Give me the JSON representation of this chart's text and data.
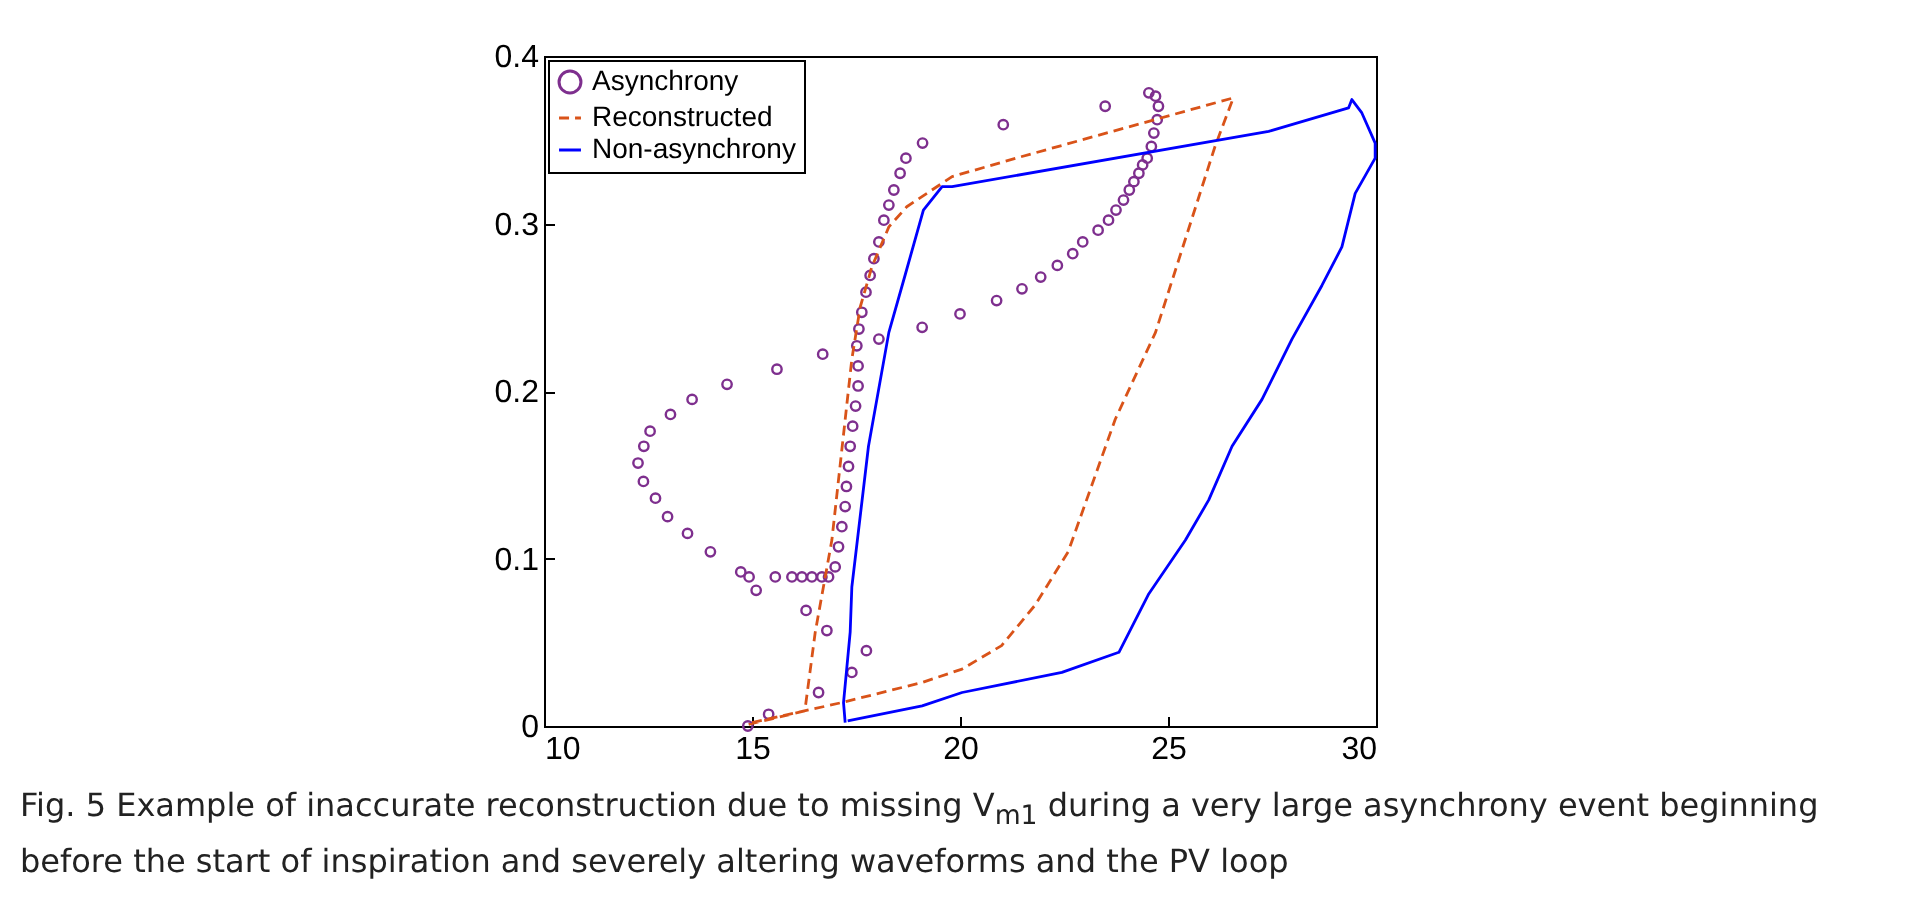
{
  "chart_data": {
    "type": "scatter",
    "xlim": [
      10,
      30
    ],
    "ylim": [
      0,
      0.4
    ],
    "xticks": [
      10,
      15,
      20,
      25,
      30
    ],
    "yticks": [
      0,
      0.1,
      0.2,
      0.3,
      0.4
    ],
    "grid": false,
    "legend": "top left",
    "annotations": [
      "Fig. 5 Example of inaccurate reconstruction due to missing V$_{m1}$ during a very large asynchrony event beginning before the start of inspiration and severely altering waveforms and the PV loop"
    ],
    "series": [
      {
        "name": "Asynchrony",
        "marker": "circle",
        "color": "#7e2f8e",
        "x": [
          14.9,
          15.4,
          16.6,
          17.4,
          17.75,
          16.8,
          16.3,
          15.1,
          14.93,
          14.73,
          14.0,
          13.45,
          12.97,
          12.68,
          12.39,
          12.26,
          12.4,
          12.55,
          13.04,
          13.56,
          14.4,
          15.6,
          16.7,
          18.05,
          15.56,
          15.96,
          16.2,
          16.44,
          16.68,
          16.84,
          17.0,
          17.08,
          17.16,
          17.24,
          17.27,
          17.32,
          17.36,
          17.42,
          17.49,
          17.55,
          17.55,
          17.52,
          17.57,
          17.64,
          17.74,
          17.84,
          17.93,
          18.05,
          18.17,
          18.29,
          18.41,
          18.56,
          18.7,
          19.1,
          19.09,
          20.0,
          21.04,
          23.49,
          20.88,
          21.49,
          21.94,
          22.34,
          22.71,
          22.95,
          23.32,
          23.57,
          23.75,
          23.93,
          24.07,
          24.18,
          24.3,
          24.39,
          24.5,
          24.6,
          24.66,
          24.74,
          24.77,
          24.7,
          24.54
        ],
        "values": [
          0.0,
          0.007,
          0.02,
          0.032,
          0.045,
          0.057,
          0.069,
          0.081,
          0.089,
          0.092,
          0.104,
          0.115,
          0.125,
          0.136,
          0.146,
          0.157,
          0.167,
          0.176,
          0.186,
          0.195,
          0.204,
          0.213,
          0.222,
          0.231,
          0.089,
          0.089,
          0.089,
          0.089,
          0.089,
          0.089,
          0.095,
          0.107,
          0.119,
          0.131,
          0.143,
          0.155,
          0.167,
          0.179,
          0.191,
          0.203,
          0.215,
          0.227,
          0.237,
          0.247,
          0.259,
          0.269,
          0.279,
          0.289,
          0.302,
          0.311,
          0.32,
          0.33,
          0.339,
          0.348,
          0.238,
          0.246,
          0.359,
          0.37,
          0.254,
          0.261,
          0.268,
          0.275,
          0.282,
          0.289,
          0.296,
          0.302,
          0.308,
          0.314,
          0.32,
          0.325,
          0.33,
          0.335,
          0.339,
          0.346,
          0.354,
          0.362,
          0.37,
          0.376,
          0.378
        ]
      },
      {
        "name": "Reconstructed",
        "type": "line",
        "marker": "none",
        "line_style": "dashed",
        "color": "#d95319",
        "x": [
          14.92,
          16.27,
          16.52,
          16.92,
          17.4,
          17.6,
          17.88,
          18.29,
          18.72,
          19.81,
          21.49,
          26.57,
          26.13,
          24.7,
          23.73,
          22.6,
          21.8,
          21.0,
          20.05,
          19.09,
          17.16,
          15.0
        ],
        "values": [
          0.001,
          0.009,
          0.056,
          0.111,
          0.219,
          0.25,
          0.274,
          0.298,
          0.31,
          0.328,
          0.34,
          0.375,
          0.346,
          0.235,
          0.183,
          0.104,
          0.072,
          0.048,
          0.034,
          0.026,
          0.014,
          0.002
        ]
      },
      {
        "name": "Non-asynchrony",
        "type": "line",
        "marker": "none",
        "line_style": "solid",
        "color": "#0000ff",
        "x": [
          17.24,
          17.2,
          17.36,
          17.4,
          17.8,
          18.29,
          18.69,
          19.12,
          19.57,
          19.81,
          27.42,
          29.34,
          29.42,
          29.66,
          29.98,
          29.98,
          29.5,
          29.18,
          28.7,
          27.98,
          27.26,
          26.54,
          25.98,
          25.42,
          24.54,
          23.82,
          22.45,
          20.05,
          19.09,
          17.3
        ],
        "values": [
          0.002,
          0.014,
          0.056,
          0.083,
          0.167,
          0.235,
          0.27,
          0.308,
          0.322,
          0.322,
          0.355,
          0.369,
          0.374,
          0.366,
          0.348,
          0.339,
          0.318,
          0.286,
          0.263,
          0.231,
          0.195,
          0.167,
          0.135,
          0.111,
          0.079,
          0.044,
          0.032,
          0.02,
          0.012,
          0.003
        ]
      }
    ]
  }
}
